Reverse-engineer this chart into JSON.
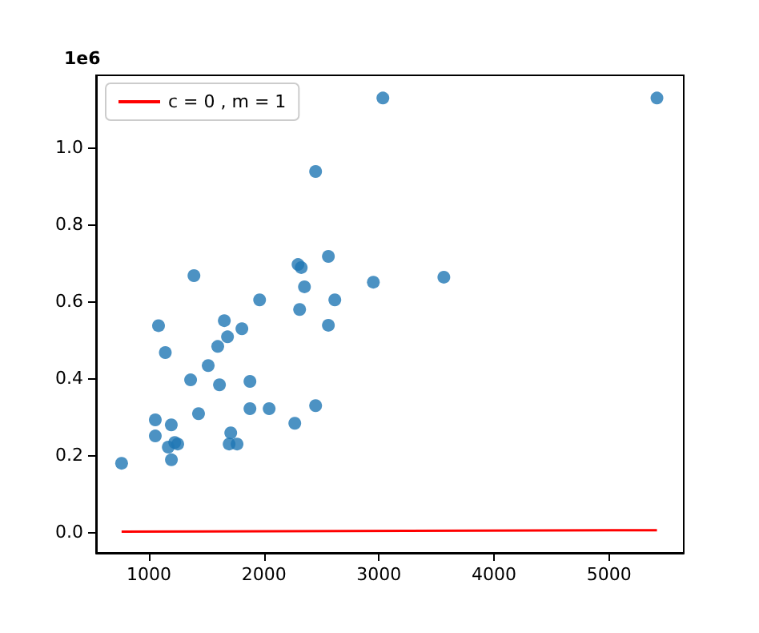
{
  "chart_data": {
    "type": "scatter",
    "ylabel": "1e6",
    "xlim": [
      540,
      5650
    ],
    "xticks": [
      1000,
      2000,
      3000,
      4000,
      5000
    ],
    "ylim": [
      -0.054,
      1.188
    ],
    "yticks": [
      {
        "value": 0,
        "label": "0.0"
      },
      0.2,
      0.4,
      0.6,
      0.8,
      {
        "value": 1,
        "label": "1.0"
      }
    ],
    "grid": false,
    "legend": "top left",
    "marker": "circle",
    "series": [
      {
        "color": "#1f77b4",
        "x": [
          762,
          1083,
          1142,
          1362,
          1055,
          1055,
          1194,
          1168,
          1224,
          1250,
          1195,
          1431,
          1515,
          1598,
          1613,
          1655,
          1683,
          1808,
          1711,
          1697,
          1766,
          1878,
          1878,
          1962,
          2045,
          2268,
          2449,
          2310,
          2616,
          2560,
          1391,
          2449,
          3034,
          2560,
          2296,
          2324,
          2352,
          2951,
          3564,
          5417
        ],
        "values": [
          0.179,
          0.537,
          0.467,
          0.396,
          0.292,
          0.25,
          0.279,
          0.221,
          0.233,
          0.229,
          0.188,
          0.308,
          0.433,
          0.483,
          0.383,
          0.55,
          0.508,
          0.529,
          0.258,
          0.229,
          0.229,
          0.392,
          0.321,
          0.604,
          0.321,
          0.283,
          0.329,
          0.579,
          0.604,
          0.538,
          0.667,
          0.938,
          1.129,
          0.717,
          0.696,
          0.688,
          0.638,
          0.65,
          0.663,
          1.129
        ]
      },
      {
        "type": "line",
        "name": "c = 0 , m = 1",
        "color": "#ff0000",
        "line_style": "solid",
        "marker": "none",
        "x": [
          762,
          5417
        ],
        "values": [
          0.001,
          0.005
        ]
      }
    ]
  }
}
